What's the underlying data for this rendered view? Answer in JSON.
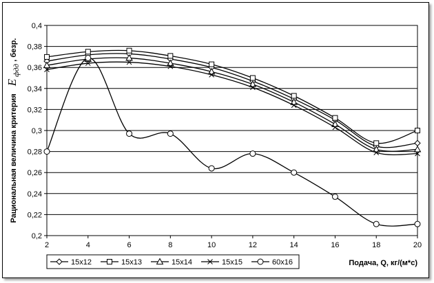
{
  "chart_data": {
    "type": "line",
    "ylabel": "Рациональная величина критерия",
    "ylabel_symbol": "E",
    "ylabel_subscript": "фдд",
    "ylabel_unit": ", безр.",
    "xlabel": "Подача, Q, кг/(м*с)",
    "x": [
      2,
      4,
      6,
      8,
      10,
      12,
      14,
      16,
      18,
      20
    ],
    "x_ticks": [
      "2",
      "4",
      "6",
      "8",
      "10",
      "12",
      "14",
      "16",
      "18",
      "20"
    ],
    "y_ticks": [
      "0,2",
      "0,22",
      "0,24",
      "0,26",
      "0,28",
      "0,3",
      "0,32",
      "0,34",
      "0,36",
      "0,38",
      "0,4"
    ],
    "xlim": [
      2,
      20
    ],
    "ylim": [
      0.2,
      0.4
    ],
    "grid": "horizontal",
    "legend_position": "bottom-left",
    "series": [
      {
        "name": "15x12",
        "marker": "diamond",
        "values": [
          0.366,
          0.372,
          0.373,
          0.368,
          0.36,
          0.347,
          0.33,
          0.31,
          0.285,
          0.288
        ]
      },
      {
        "name": "15x13",
        "marker": "square",
        "values": [
          0.37,
          0.375,
          0.376,
          0.371,
          0.363,
          0.35,
          0.333,
          0.312,
          0.288,
          0.3
        ]
      },
      {
        "name": "15x14",
        "marker": "triangle",
        "values": [
          0.362,
          0.368,
          0.369,
          0.364,
          0.356,
          0.344,
          0.327,
          0.306,
          0.282,
          0.282
        ]
      },
      {
        "name": "15x15",
        "marker": "cross",
        "values": [
          0.358,
          0.364,
          0.365,
          0.361,
          0.353,
          0.341,
          0.324,
          0.303,
          0.279,
          0.278
        ]
      },
      {
        "name": "60x16",
        "marker": "circle",
        "values": [
          0.28,
          0.369,
          0.297,
          0.297,
          0.264,
          0.278,
          0.26,
          0.237,
          0.211,
          0.211
        ]
      }
    ]
  }
}
